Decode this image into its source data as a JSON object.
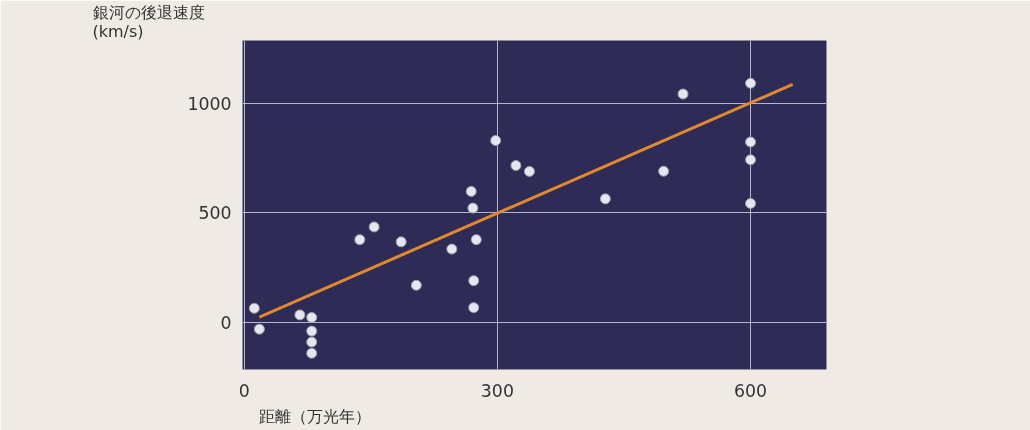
{
  "chart_data": {
    "type": "scatter",
    "xlabel": "距離（万光年）",
    "ylabel": "銀河の後退速度\n(km/s)",
    "xlim": [
      -2,
      690
    ],
    "ylim": [
      -215,
      1285
    ],
    "xticks": [
      0,
      300,
      600
    ],
    "yticks": [
      0,
      500,
      1000
    ],
    "grid": true,
    "series": [
      {
        "marker": "circle",
        "color": "#e6e6ee",
        "x": [
          12,
          18,
          66,
          80,
          80,
          80,
          80,
          137,
          154,
          186,
          204,
          246,
          269,
          271,
          275,
          272,
          272,
          298,
          322,
          338,
          428,
          497,
          520,
          600,
          600,
          600,
          600
        ],
        "values": [
          64,
          -31,
          34,
          22,
          -40,
          -90,
          -141,
          377,
          435,
          367,
          169,
          334,
          597,
          521,
          377,
          190,
          67,
          829,
          715,
          688,
          563,
          689,
          1041,
          1090,
          822,
          741,
          542
        ]
      },
      {
        "type": "line",
        "color": "#e0892e",
        "x": [
          18,
          650
        ],
        "values": [
          24,
          1085
        ]
      }
    ]
  }
}
